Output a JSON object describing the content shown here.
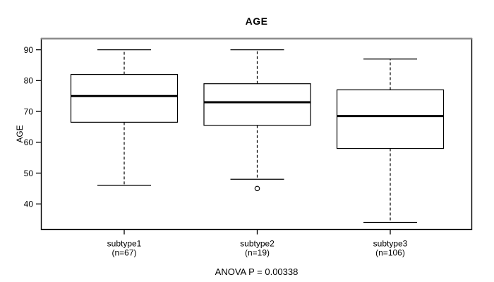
{
  "chart_data": {
    "type": "boxplot",
    "title": "AGE",
    "ylabel": "AGE",
    "xlabel": "",
    "annotation": "ANOVA P = 0.00338",
    "ylim": [
      31.6,
      93.8
    ],
    "yticks": [
      40,
      50,
      60,
      70,
      80,
      90
    ],
    "grid": false,
    "whisker_style": "dashed",
    "colors": {
      "line": "#000000",
      "box_fill": "#ffffff",
      "border_top": "#8a8a8a"
    },
    "groups": [
      {
        "label": "subtype1",
        "sublabel": "(n=67)",
        "n": 67,
        "stats": {
          "whisker_low": 46,
          "q1": 66.5,
          "median": 75,
          "q3": 82,
          "whisker_high": 90
        },
        "outliers": []
      },
      {
        "label": "subtype2",
        "sublabel": "(n=19)",
        "n": 19,
        "stats": {
          "whisker_low": 48,
          "q1": 65.5,
          "median": 73,
          "q3": 79,
          "whisker_high": 90
        },
        "outliers": [
          45
        ]
      },
      {
        "label": "subtype3",
        "sublabel": "(n=106)",
        "n": 106,
        "stats": {
          "whisker_low": 34,
          "q1": 58,
          "median": 68.5,
          "q3": 77,
          "whisker_high": 87
        },
        "outliers": []
      }
    ]
  }
}
